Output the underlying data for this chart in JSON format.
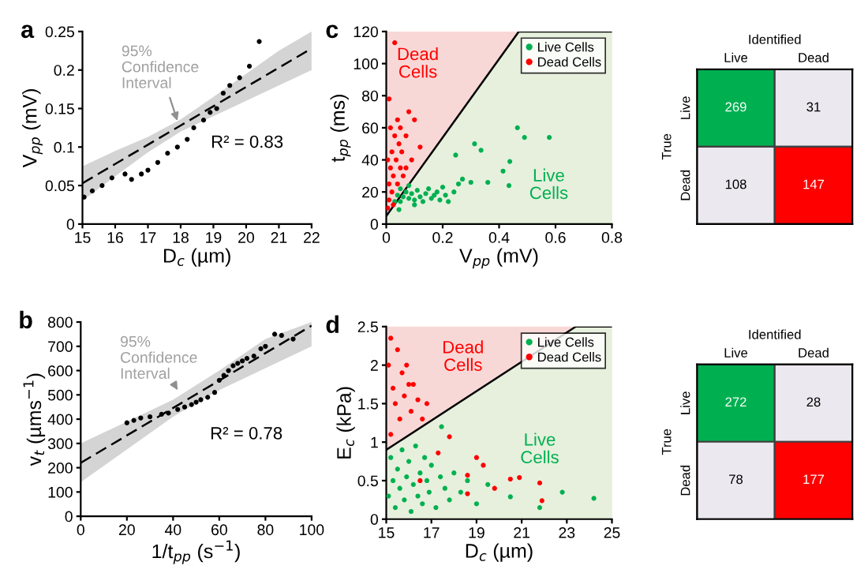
{
  "chart_data": [
    {
      "type": "scatter",
      "title": "a",
      "xlabel": "D$_{c}$ (µm)",
      "ylabel": "V$_{pp}$ (mV)",
      "xlim": [
        15,
        22
      ],
      "ylim": [
        0,
        0.25
      ],
      "xticks": [
        15,
        16,
        17,
        18,
        19,
        20,
        21,
        22
      ],
      "yticks": [
        0,
        0.05,
        0.1,
        0.15,
        0.2,
        0.25
      ],
      "legend": false,
      "annotations": [
        {
          "text": "95%\nConfidence\nInterval",
          "x": 17.9,
          "y": 0.134
        },
        "R² = 0.83"
      ],
      "series": [
        {
          "type": "line",
          "color": "#000000",
          "line_style": "dashed",
          "x": [
            15,
            16,
            17,
            18,
            19,
            20,
            21,
            22
          ],
          "values": [
            0.053,
            0.078,
            0.103,
            0.128,
            0.153,
            0.178,
            0.203,
            0.228
          ],
          "lower": [
            0.03,
            0.062,
            0.093,
            0.12,
            0.14,
            0.16,
            0.18,
            0.2
          ],
          "upper": [
            0.075,
            0.095,
            0.113,
            0.136,
            0.165,
            0.195,
            0.225,
            0.25
          ]
        },
        {
          "type": "scatter",
          "marker": "circle",
          "color": "#000000",
          "x": [
            15.05,
            15.3,
            15.6,
            15.9,
            16.3,
            16.5,
            16.8,
            17.0,
            17.3,
            17.6,
            17.9,
            18.2,
            18.4,
            18.7,
            18.9,
            19.1,
            19.3,
            19.5,
            19.8,
            20.1,
            20.4
          ],
          "values": [
            0.035,
            0.043,
            0.05,
            0.06,
            0.065,
            0.058,
            0.065,
            0.07,
            0.08,
            0.092,
            0.1,
            0.11,
            0.125,
            0.135,
            0.145,
            0.15,
            0.17,
            0.18,
            0.19,
            0.205,
            0.237
          ]
        }
      ]
    },
    {
      "type": "scatter",
      "title": "c",
      "xlabel": "V$_{pp}$ (mV)",
      "ylabel": "t$_{pp}$ (ms)",
      "xlim": [
        0,
        0.8
      ],
      "ylim": [
        0,
        120
      ],
      "xticks": [
        0,
        0.2,
        0.4,
        0.6,
        0.8
      ],
      "yticks": [
        0,
        20,
        40,
        60,
        80,
        100,
        120
      ],
      "legend": "top right",
      "annotations": [
        "Dead\nCells",
        "Live\nCells"
      ],
      "series": [
        {
          "type": "area",
          "color": "#e6f0dd",
          "x": [
            0,
            0.47,
            0.8
          ],
          "values": [
            5,
            120,
            120
          ]
        },
        {
          "type": "scatter",
          "marker": "circle",
          "name": "Live Cells",
          "color": "#00b050",
          "x": [
            0.03,
            0.045,
            0.04,
            0.05,
            0.06,
            0.07,
            0.08,
            0.09,
            0.1,
            0.11,
            0.12,
            0.13,
            0.14,
            0.15,
            0.16,
            0.17,
            0.18,
            0.19,
            0.2,
            0.21,
            0.22,
            0.24,
            0.05,
            0.08,
            0.1,
            0.465,
            0.49,
            0.578,
            0.313,
            0.336,
            0.246,
            0.438,
            0.414,
            0.36,
            0.3,
            0.435,
            0.27,
            0.256
          ],
          "values": [
            14,
            9,
            18,
            14,
            17,
            20,
            16,
            19,
            15,
            21,
            17,
            14,
            19,
            22,
            16,
            18,
            20,
            15,
            23,
            18,
            14,
            20,
            22,
            24,
            12,
            60,
            54,
            54,
            50,
            46,
            43,
            39,
            33,
            26,
            26,
            24,
            28,
            25
          ]
        },
        {
          "type": "scatter",
          "marker": "circle",
          "name": "Dead Cells",
          "color": "#ff0000",
          "x": [
            0.005,
            0.01,
            0.01,
            0.015,
            0.02,
            0.02,
            0.025,
            0.03,
            0.03,
            0.035,
            0.04,
            0.04,
            0.045,
            0.05,
            0.05,
            0.055,
            0.06,
            0.07,
            0.08,
            0.09,
            0.1,
            0.12,
            0.01,
            0.015,
            0.005,
            0.025,
            0.07
          ],
          "values": [
            10,
            15,
            25,
            35,
            20,
            45,
            30,
            55,
            113,
            40,
            25,
            65,
            50,
            35,
            60,
            45,
            30,
            55,
            70,
            40,
            65,
            48,
            78,
            60,
            40,
            12,
            35
          ]
        }
      ]
    },
    {
      "type": "heatmap",
      "categories": [
        "Live",
        "Dead"
      ],
      "y_categories": [
        "Live",
        "Dead"
      ],
      "xlabel": "Identified",
      "ylabel": "True",
      "data_labels": true,
      "cells": [
        [
          269,
          31
        ],
        [
          108,
          147
        ]
      ],
      "colors": [
        [
          "#00b050",
          "#ebe8ef"
        ],
        [
          "#ebe8ef",
          "#ff0000"
        ]
      ]
    },
    {
      "type": "scatter",
      "title": "b",
      "xlabel": "1/t$_{pp}$ (s$^{−1}$)",
      "ylabel": "v$_{t}$ (µms$^{−1}$)",
      "xlim": [
        0,
        100
      ],
      "ylim": [
        0,
        800
      ],
      "xticks": [
        0,
        20,
        40,
        60,
        80,
        100
      ],
      "yticks": [
        0,
        100,
        200,
        300,
        400,
        500,
        600,
        700,
        800
      ],
      "legend": false,
      "annotations": [
        {
          "text": "95%\nConfidence\nInterval",
          "x": 42,
          "y": 520
        },
        "R² = 0.78"
      ],
      "series": [
        {
          "type": "line",
          "color": "#000000",
          "line_style": "dashed",
          "x": [
            0,
            20,
            40,
            60,
            80,
            100
          ],
          "values": [
            220,
            333,
            446,
            559,
            672,
            785
          ],
          "lower": [
            140,
            275,
            410,
            520,
            610,
            700
          ],
          "upper": [
            300,
            390,
            480,
            600,
            730,
            800
          ]
        },
        {
          "type": "scatter",
          "marker": "circle",
          "color": "#000000",
          "x": [
            20,
            23,
            26,
            30,
            35,
            38,
            42,
            45,
            48,
            50,
            52,
            55,
            58,
            60,
            62,
            64,
            66,
            68,
            70,
            72,
            75,
            78,
            80,
            84,
            87,
            92
          ],
          "values": [
            385,
            395,
            405,
            410,
            420,
            425,
            440,
            450,
            460,
            470,
            480,
            490,
            510,
            560,
            580,
            600,
            620,
            630,
            640,
            650,
            660,
            690,
            700,
            750,
            745,
            730
          ]
        }
      ]
    },
    {
      "type": "scatter",
      "title": "d",
      "xlabel": "D$_{c}$ (µm)",
      "ylabel": "E$_{c}$ (kPa)",
      "xlim": [
        15,
        25
      ],
      "ylim": [
        0,
        2.5
      ],
      "xticks": [
        15,
        17,
        19,
        21,
        23,
        25
      ],
      "yticks": [
        0,
        0.5,
        1,
        1.5,
        2,
        2.5
      ],
      "legend": "top right",
      "annotations": [
        "Dead\nCells",
        "Live\nCells"
      ],
      "series": [
        {
          "type": "area",
          "color": "#e6f0dd",
          "x": [
            15,
            23.4,
            25
          ],
          "values": [
            0.9,
            2.5,
            2.5
          ]
        },
        {
          "type": "scatter",
          "marker": "circle",
          "name": "Live Cells",
          "color": "#00b050",
          "x": [
            15.1,
            15.2,
            15.3,
            15.4,
            15.5,
            15.6,
            15.7,
            15.8,
            15.9,
            16,
            16.1,
            16.2,
            16.3,
            16.4,
            16.5,
            16.6,
            16.7,
            16.8,
            16.9,
            17,
            17.2,
            17.4,
            17.6,
            17.8,
            18,
            18.3,
            18.6,
            19,
            19.5,
            20.5,
            21.8,
            22.8,
            24.2,
            17.45
          ],
          "values": [
            0.3,
            0.8,
            0.5,
            0.15,
            0.65,
            0.4,
            0.9,
            0.25,
            0.55,
            0.75,
            0.1,
            0.45,
            0.95,
            0.3,
            0.6,
            0.2,
            0.8,
            0.5,
            0.35,
            0.7,
            0.15,
            0.55,
            0.4,
            0.25,
            0.6,
            0.35,
            0.5,
            0.2,
            0.45,
            0.29,
            0.15,
            0.35,
            0.27,
            1.2
          ]
        },
        {
          "type": "scatter",
          "marker": "circle",
          "name": "Dead Cells",
          "color": "#ff0000",
          "x": [
            15.1,
            15.2,
            15.3,
            15.4,
            15.5,
            15.6,
            15.7,
            15.8,
            15.9,
            16,
            16.1,
            16.2,
            16.4,
            16.6,
            15.2,
            16.8,
            17.3,
            17.8,
            18.6,
            18.6,
            19.0,
            19.3,
            19.8,
            20.5,
            20.9,
            21.8,
            21.9,
            16.5
          ],
          "values": [
            2.0,
            2.35,
            1.7,
            1.5,
            2.2,
            1.3,
            1.9,
            1.6,
            2.0,
            1.75,
            1.4,
            1.75,
            1.55,
            1.3,
            1.1,
            1.5,
            0.86,
            1.07,
            0.57,
            0.33,
            0.8,
            0.7,
            0.4,
            0.52,
            0.54,
            0.47,
            0.24,
            0.5
          ]
        }
      ]
    },
    {
      "type": "heatmap",
      "categories": [
        "Live",
        "Dead"
      ],
      "y_categories": [
        "Live",
        "Dead"
      ],
      "xlabel": "Identified",
      "ylabel": "True",
      "data_labels": true,
      "cells": [
        [
          272,
          28
        ],
        [
          78,
          177
        ]
      ],
      "colors": [
        [
          "#00b050",
          "#ebe8ef"
        ],
        [
          "#ebe8ef",
          "#ff0000"
        ]
      ]
    }
  ]
}
